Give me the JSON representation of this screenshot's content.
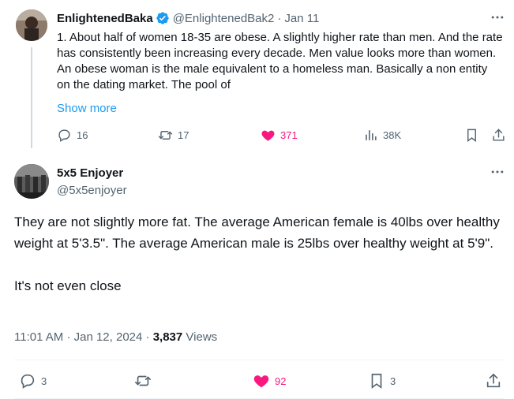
{
  "parent_tweet": {
    "display_name": "EnlightenedBaka",
    "handle": "@EnlightenedBak2",
    "separator": "·",
    "date": "Jan 11",
    "text": "1. About half of women 18-35 are obese. A slightly higher rate than men. And the rate has consistently been increasing every decade. Men value looks more than women. An obese woman is the male equivalent to a homeless man. Basically a non entity on the dating market. The pool of",
    "show_more": "Show more",
    "actions": {
      "replies": "16",
      "retweets": "17",
      "likes": "371",
      "views": "38K"
    }
  },
  "main_tweet": {
    "display_name": "5x5 Enjoyer",
    "handle": "@5x5enjoyer",
    "paragraph_1": "They are not slightly more fat. The average American female is 40lbs over healthy weight at 5'3.5\". The average American male is 25lbs over healthy weight at 5'9\".",
    "paragraph_2": "It's not even close",
    "time": "11:01 AM",
    "date_sep": "·",
    "date": "Jan 12, 2024",
    "views_sep": "·",
    "views_count": "3,837",
    "views_label": "Views",
    "actions": {
      "replies": "3",
      "likes": "92",
      "bookmarks": "3"
    }
  },
  "colors": {
    "accent": "#1d9bf0",
    "like": "#f91880",
    "secondary_text": "#536471"
  },
  "icons": [
    "verified-badge-icon",
    "more-icon",
    "reply-icon",
    "retweet-icon",
    "heart-icon",
    "views-icon",
    "bookmark-icon",
    "share-icon"
  ]
}
